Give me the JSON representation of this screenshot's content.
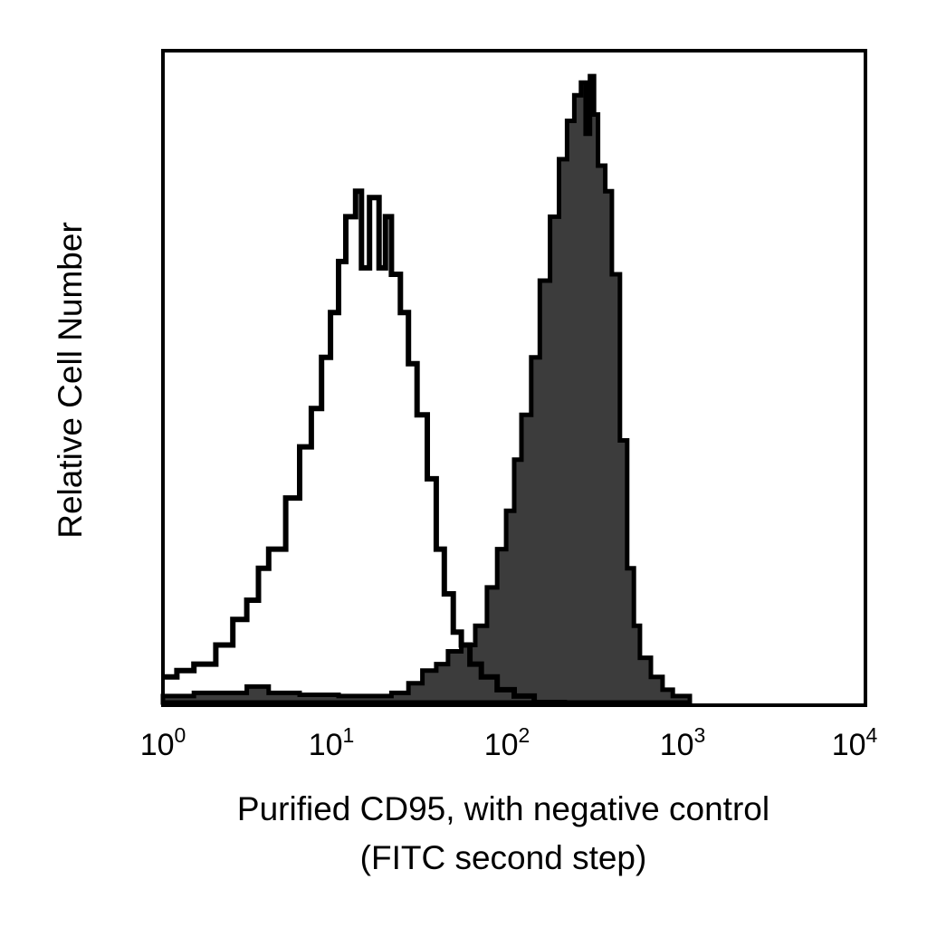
{
  "chart_data": {
    "type": "area",
    "x_scale": "log",
    "xlim": [
      1,
      10000
    ],
    "ylim": [
      0,
      1
    ],
    "y_ticks_shown": false,
    "grid": false,
    "legend": "none",
    "xlabel": "Purified CD95, with negative control",
    "xlabel_line2": "(FITC second step)",
    "ylabel": "Relative Cell Number",
    "x_ticks": [
      {
        "base": "10",
        "exp": "0",
        "value": 1
      },
      {
        "base": "10",
        "exp": "1",
        "value": 10
      },
      {
        "base": "10",
        "exp": "2",
        "value": 100
      },
      {
        "base": "10",
        "exp": "3",
        "value": 1000
      },
      {
        "base": "10",
        "exp": "4",
        "value": 10000
      }
    ],
    "series": [
      {
        "style": "outline",
        "color": "#000000",
        "points": [
          [
            1.0,
            0.04
          ],
          [
            1.2,
            0.05
          ],
          [
            1.5,
            0.06
          ],
          [
            2.0,
            0.09
          ],
          [
            2.5,
            0.13
          ],
          [
            3.0,
            0.16
          ],
          [
            3.5,
            0.21
          ],
          [
            4.0,
            0.24
          ],
          [
            5.0,
            0.32
          ],
          [
            6.0,
            0.4
          ],
          [
            7.0,
            0.46
          ],
          [
            8.0,
            0.54
          ],
          [
            9.0,
            0.61
          ],
          [
            10.0,
            0.69
          ],
          [
            11.0,
            0.76
          ],
          [
            12.5,
            0.8
          ],
          [
            13.5,
            0.68
          ],
          [
            15.0,
            0.79
          ],
          [
            17.0,
            0.68
          ],
          [
            18.5,
            0.76
          ],
          [
            20.0,
            0.67
          ],
          [
            22.5,
            0.61
          ],
          [
            25.0,
            0.53
          ],
          [
            28.0,
            0.45
          ],
          [
            32.0,
            0.35
          ],
          [
            36.0,
            0.24
          ],
          [
            40.0,
            0.17
          ],
          [
            45.0,
            0.11
          ],
          [
            50.0,
            0.09
          ],
          [
            56.0,
            0.06
          ],
          [
            65.0,
            0.04
          ],
          [
            80.0,
            0.02
          ],
          [
            100.0,
            0.01
          ],
          [
            130.0,
            0.0
          ],
          [
            200.0,
            0.0
          ]
        ]
      },
      {
        "style": "filled",
        "color": "#3c3c3c",
        "points": [
          [
            1.0,
            0.01
          ],
          [
            1.5,
            0.015
          ],
          [
            2.0,
            0.015
          ],
          [
            3.0,
            0.025
          ],
          [
            4.0,
            0.015
          ],
          [
            6.0,
            0.012
          ],
          [
            10.0,
            0.01
          ],
          [
            15.0,
            0.01
          ],
          [
            20.0,
            0.015
          ],
          [
            25.0,
            0.03
          ],
          [
            30.0,
            0.05
          ],
          [
            36.0,
            0.06
          ],
          [
            42.0,
            0.08
          ],
          [
            50.0,
            0.09
          ],
          [
            60.0,
            0.12
          ],
          [
            70.0,
            0.18
          ],
          [
            80.0,
            0.24
          ],
          [
            90.0,
            0.3
          ],
          [
            100.0,
            0.38
          ],
          [
            110.0,
            0.45
          ],
          [
            125.0,
            0.54
          ],
          [
            140.0,
            0.66
          ],
          [
            160.0,
            0.76
          ],
          [
            180.0,
            0.85
          ],
          [
            200.0,
            0.91
          ],
          [
            220.0,
            0.95
          ],
          [
            240.0,
            0.97
          ],
          [
            255.0,
            0.89
          ],
          [
            270.0,
            0.98
          ],
          [
            285.0,
            0.92
          ],
          [
            300.0,
            0.84
          ],
          [
            330.0,
            0.8
          ],
          [
            360.0,
            0.67
          ],
          [
            400.0,
            0.41
          ],
          [
            440.0,
            0.21
          ],
          [
            480.0,
            0.12
          ],
          [
            520.0,
            0.07
          ],
          [
            600.0,
            0.04
          ],
          [
            700.0,
            0.02
          ],
          [
            800.0,
            0.01
          ],
          [
            1000.0,
            0.0
          ]
        ]
      }
    ]
  }
}
